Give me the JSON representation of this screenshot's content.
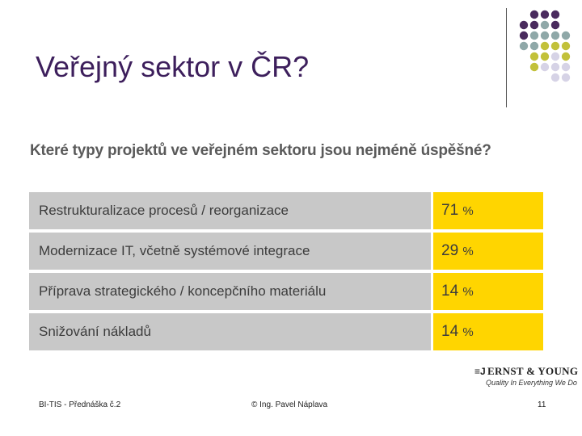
{
  "slide": {
    "title": "Veřejný sektor v ČR?",
    "question": "Které typy projektů ve veřejném sektoru jsou nejméně úspěšné?",
    "percent_sign": "%",
    "logo": {
      "mark": "≡J",
      "brand": "ERNST & YOUNG",
      "tagline": "Quality In Everything We Do"
    },
    "footer": {
      "left": "BI-TIS - Přednáška č.2",
      "center": "© Ing. Pavel Náplava",
      "right": "11"
    },
    "colors": {
      "title": "#3d1f5c",
      "label_bg": "#c8c8c8",
      "value_bg": "#ffd500",
      "dot_purple": "#4a2b5e",
      "dot_teal": "#8fa8a8",
      "dot_olive": "#c2c13a",
      "dot_lilac": "#d6d3e6"
    }
  },
  "chart_data": {
    "type": "table",
    "title": "Které typy projektů ve veřejném sektoru jsou nejméně úspěšné?",
    "categories": [
      "Restrukturalizace procesů / reorganizace",
      "Modernizace IT, včetně systémové integrace",
      "Příprava strategického / koncepčního  materiálu",
      "Snižování nákladů"
    ],
    "values": [
      71,
      29,
      14,
      14
    ],
    "unit": "%"
  }
}
